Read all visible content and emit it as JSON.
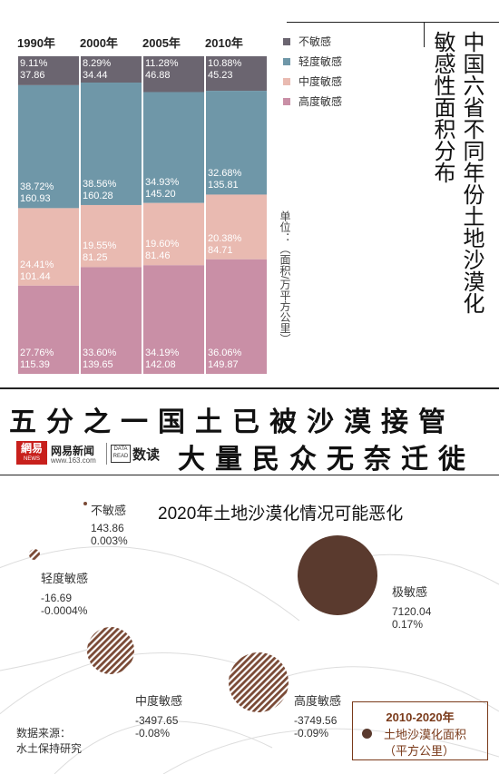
{
  "title": "中国六省不同年份土地沙漠化敏感性面积分布",
  "title_col1": "中国六省不同年份土地沙漠化",
  "title_col2": "敏感性面积分布",
  "unit_label": "单位：（面积/万平方公里）",
  "banner_line1": "五分之一国土已被沙漠接管",
  "banner_line2": "大量民众无奈迁徙",
  "brand": {
    "logo_text": "網易",
    "logo_sub": "NEWS",
    "name": "网易新闻",
    "url": "www.163.com",
    "data_read": "数读"
  },
  "source": {
    "line1": "数据来源：",
    "line2": "水土保持研究"
  },
  "colors": {
    "not_sensitive": "#6b6570",
    "light": "#6f97a8",
    "medium": "#e9bab1",
    "high": "#c98fa6",
    "extreme": "#5a3a2e",
    "stripe": "#7a4a36"
  },
  "chart_data": [
    {
      "type": "bar",
      "stacked": true,
      "percent": true,
      "categories": [
        "1990年",
        "2000年",
        "2005年",
        "2010年"
      ],
      "series": [
        {
          "name": "不敏感",
          "color": "#6b6570",
          "percent": [
            "9.11%",
            "8.29%",
            "11.28%",
            "10.88%"
          ],
          "values": [
            37.86,
            34.44,
            46.88,
            45.23
          ]
        },
        {
          "name": "轻度敏感",
          "color": "#6f97a8",
          "percent": [
            "38.72%",
            "38.56%",
            "34.93%",
            "32.68%"
          ],
          "values": [
            160.93,
            160.28,
            145.2,
            135.81
          ]
        },
        {
          "name": "中度敏感",
          "color": "#e9bab1",
          "percent": [
            "24.41%",
            "19.55%",
            "19.60%",
            "20.38%"
          ],
          "values": [
            101.44,
            81.25,
            81.46,
            84.71
          ]
        },
        {
          "name": "高度敏感",
          "color": "#c98fa6",
          "percent": [
            "27.76%",
            "33.60%",
            "34.19%",
            "36.06%"
          ],
          "values": [
            115.39,
            139.65,
            142.08,
            149.87
          ]
        }
      ],
      "legend_position": "right"
    },
    {
      "type": "bubble",
      "title": "2020年土地沙漠化情况可能恶化",
      "legend_title_line1": "2010-2020年",
      "legend_title_line2": "土地沙漠化面积",
      "legend_title_line3": "（平方公里）",
      "points": [
        {
          "name": "不敏感",
          "value": "143.86",
          "percent": "0.003%"
        },
        {
          "name": "轻度敏感",
          "value": "-16.69",
          "percent": "-0.0004%"
        },
        {
          "name": "中度敏感",
          "value": "-3497.65",
          "percent": "-0.08%"
        },
        {
          "name": "高度敏感",
          "value": "-3749.56",
          "percent": "-0.09%"
        },
        {
          "name": "极敏感",
          "value": "7120.04",
          "percent": "0.17%"
        }
      ]
    }
  ]
}
